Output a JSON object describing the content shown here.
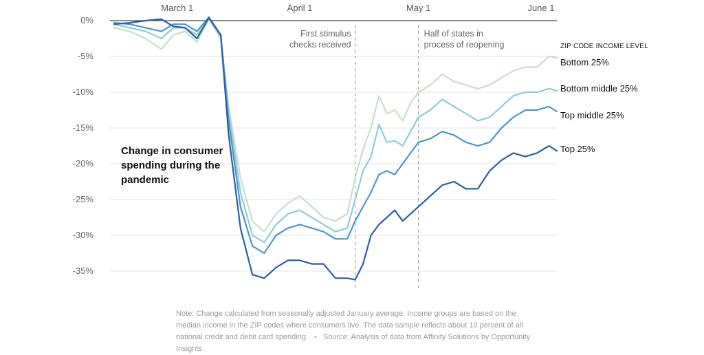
{
  "chart_data": {
    "type": "line",
    "title": "Change in consumer spending during the pandemic",
    "legend_title": "ZIP CODE INCOME LEVEL",
    "y_ticks": [
      "0%",
      "-5%",
      "-10%",
      "-15%",
      "-20%",
      "-25%",
      "-30%",
      "-35%"
    ],
    "ylim": [
      -37,
      0
    ],
    "x_ticks": [
      {
        "label": "March 1",
        "x": "2020-03-01"
      },
      {
        "label": "April 1",
        "x": "2020-04-01"
      },
      {
        "label": "May 1",
        "x": "2020-05-01"
      },
      {
        "label": "June 1",
        "x": "2020-06-01"
      }
    ],
    "xlim": [
      "2020-02-13",
      "2020-06-05"
    ],
    "annotations": [
      {
        "x": "2020-04-15",
        "lines": [
          "First stimulus",
          "checks received"
        ]
      },
      {
        "x": "2020-05-01",
        "lines": [
          "Half of states in",
          "process of reopening"
        ]
      }
    ],
    "series": [
      {
        "name": "Bottom 25%",
        "color": "#c5e0c4",
        "x": [
          "2020-02-14",
          "2020-02-18",
          "2020-02-22",
          "2020-02-26",
          "2020-02-29",
          "2020-03-03",
          "2020-03-06",
          "2020-03-09",
          "2020-03-12",
          "2020-03-14",
          "2020-03-17",
          "2020-03-20",
          "2020-03-23",
          "2020-03-26",
          "2020-03-29",
          "2020-04-01",
          "2020-04-04",
          "2020-04-07",
          "2020-04-10",
          "2020-04-13",
          "2020-04-15",
          "2020-04-17",
          "2020-04-19",
          "2020-04-21",
          "2020-04-23",
          "2020-04-25",
          "2020-04-27",
          "2020-04-29",
          "2020-05-01",
          "2020-05-04",
          "2020-05-07",
          "2020-05-10",
          "2020-05-13",
          "2020-05-16",
          "2020-05-19",
          "2020-05-22",
          "2020-05-25",
          "2020-05-28",
          "2020-05-31",
          "2020-06-03",
          "2020-06-05"
        ],
        "values": [
          -1.0,
          -1.5,
          -2.5,
          -4.0,
          -2.0,
          -1.5,
          -3.0,
          0.2,
          -2.5,
          -12,
          -22,
          -28,
          -29.5,
          -27,
          -25.5,
          -24.5,
          -26,
          -27.5,
          -28,
          -27,
          -22,
          -18,
          -15,
          -10.5,
          -13,
          -12.5,
          -14,
          -11.5,
          -10,
          -9,
          -7.5,
          -8.5,
          -9,
          -9.5,
          -9,
          -8,
          -7,
          -6.5,
          -6.5,
          -5,
          -5.2
        ]
      },
      {
        "name": "Bottom middle 25%",
        "color": "#8dcbd8",
        "x": [
          "2020-02-14",
          "2020-02-18",
          "2020-02-22",
          "2020-02-26",
          "2020-02-29",
          "2020-03-03",
          "2020-03-06",
          "2020-03-09",
          "2020-03-12",
          "2020-03-14",
          "2020-03-17",
          "2020-03-20",
          "2020-03-23",
          "2020-03-26",
          "2020-03-29",
          "2020-04-01",
          "2020-04-04",
          "2020-04-07",
          "2020-04-10",
          "2020-04-13",
          "2020-04-15",
          "2020-04-17",
          "2020-04-19",
          "2020-04-21",
          "2020-04-23",
          "2020-04-25",
          "2020-04-27",
          "2020-04-29",
          "2020-05-01",
          "2020-05-04",
          "2020-05-07",
          "2020-05-10",
          "2020-05-13",
          "2020-05-16",
          "2020-05-19",
          "2020-05-22",
          "2020-05-25",
          "2020-05-28",
          "2020-05-31",
          "2020-06-03",
          "2020-06-05"
        ],
        "values": [
          -0.5,
          -1.0,
          -1.5,
          -2.5,
          -1.0,
          -1.0,
          -2.0,
          0.3,
          -2.2,
          -13,
          -24,
          -30,
          -31,
          -28.5,
          -27,
          -26.5,
          -27.5,
          -28.5,
          -29.5,
          -29,
          -25,
          -21,
          -19,
          -14.5,
          -17,
          -16.8,
          -17.5,
          -15.5,
          -13.5,
          -12.5,
          -11,
          -12,
          -13,
          -14,
          -13.5,
          -12,
          -10.5,
          -10,
          -10,
          -9.5,
          -9.8
        ]
      },
      {
        "name": "Top middle 25%",
        "color": "#4a95cd",
        "x": [
          "2020-02-14",
          "2020-02-18",
          "2020-02-22",
          "2020-02-26",
          "2020-02-29",
          "2020-03-03",
          "2020-03-06",
          "2020-03-09",
          "2020-03-12",
          "2020-03-14",
          "2020-03-17",
          "2020-03-20",
          "2020-03-23",
          "2020-03-26",
          "2020-03-29",
          "2020-04-01",
          "2020-04-04",
          "2020-04-07",
          "2020-04-10",
          "2020-04-13",
          "2020-04-15",
          "2020-04-17",
          "2020-04-19",
          "2020-04-21",
          "2020-04-23",
          "2020-04-25",
          "2020-04-27",
          "2020-04-29",
          "2020-05-01",
          "2020-05-04",
          "2020-05-07",
          "2020-05-10",
          "2020-05-13",
          "2020-05-16",
          "2020-05-19",
          "2020-05-22",
          "2020-05-25",
          "2020-05-28",
          "2020-05-31",
          "2020-06-03",
          "2020-06-05"
        ],
        "values": [
          -0.3,
          -0.5,
          -1.0,
          -1.5,
          -0.5,
          -0.5,
          -1.5,
          0.5,
          -2.0,
          -14,
          -26,
          -31.5,
          -32.5,
          -30,
          -29,
          -28.5,
          -29,
          -29.5,
          -30.5,
          -30.5,
          -28,
          -26,
          -24,
          -21.5,
          -21,
          -21.5,
          -20,
          -18.5,
          -17,
          -16.5,
          -15.5,
          -16,
          -17,
          -17.5,
          -17,
          -15,
          -13.5,
          -12.5,
          -12.5,
          -12,
          -12.7
        ]
      },
      {
        "name": "Top 25%",
        "color": "#265fa5",
        "x": [
          "2020-02-14",
          "2020-02-18",
          "2020-02-22",
          "2020-02-26",
          "2020-02-29",
          "2020-03-03",
          "2020-03-06",
          "2020-03-09",
          "2020-03-12",
          "2020-03-14",
          "2020-03-17",
          "2020-03-20",
          "2020-03-23",
          "2020-03-26",
          "2020-03-29",
          "2020-04-01",
          "2020-04-04",
          "2020-04-07",
          "2020-04-10",
          "2020-04-13",
          "2020-04-15",
          "2020-04-17",
          "2020-04-19",
          "2020-04-21",
          "2020-04-23",
          "2020-04-25",
          "2020-04-27",
          "2020-04-29",
          "2020-05-01",
          "2020-05-04",
          "2020-05-07",
          "2020-05-10",
          "2020-05-13",
          "2020-05-16",
          "2020-05-19",
          "2020-05-22",
          "2020-05-25",
          "2020-05-28",
          "2020-05-31",
          "2020-06-03",
          "2020-06-05"
        ],
        "values": [
          -0.5,
          -0.3,
          0.0,
          0.2,
          -0.8,
          -1.0,
          -2.5,
          0.4,
          -2.0,
          -16,
          -29,
          -35.5,
          -36,
          -34.5,
          -33.5,
          -33.5,
          -34,
          -34,
          -36,
          -36,
          -36.2,
          -34,
          -30,
          -28.5,
          -27.5,
          -26.5,
          -28,
          -27,
          -26,
          -24.5,
          -23,
          -22.5,
          -23.5,
          -23.5,
          -21,
          -19.5,
          -18.5,
          -19,
          -18.5,
          -17.5,
          -18.2
        ]
      }
    ]
  },
  "note": "Note: Change calculated from seasonally adjusted January average. Income groups are based on the median income in the ZIP codes where consumers live. The data sample reflects about 10 percent of all national credit and debit card spending.",
  "separator": "•",
  "source": "Source: Analysis of data from Affinity Solutions by Opportunity Insights"
}
